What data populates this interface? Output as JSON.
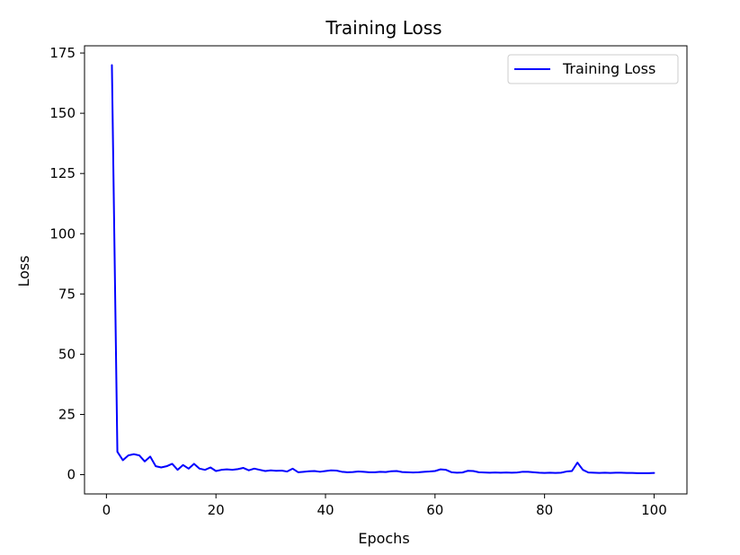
{
  "chart_data": {
    "type": "line",
    "title": "Training Loss",
    "xlabel": "Epochs",
    "ylabel": "Loss",
    "xlim": [
      -4,
      106
    ],
    "ylim": [
      -8,
      178
    ],
    "x_ticks": [
      0,
      20,
      40,
      60,
      80,
      100
    ],
    "y_ticks": [
      0,
      25,
      50,
      75,
      100,
      125,
      150,
      175
    ],
    "grid": false,
    "legend": {
      "position": "top-right",
      "entries": [
        "Training Loss"
      ]
    },
    "colors": {
      "series": "#0000ff",
      "axes": "#000000",
      "background": "#ffffff"
    },
    "series": [
      {
        "name": "Training Loss",
        "x": [
          1,
          2,
          3,
          4,
          5,
          6,
          7,
          8,
          9,
          10,
          11,
          12,
          13,
          14,
          15,
          16,
          17,
          18,
          19,
          20,
          21,
          22,
          23,
          24,
          25,
          26,
          27,
          28,
          29,
          30,
          31,
          32,
          33,
          34,
          35,
          36,
          37,
          38,
          39,
          40,
          41,
          42,
          43,
          44,
          45,
          46,
          47,
          48,
          49,
          50,
          51,
          52,
          53,
          54,
          55,
          56,
          57,
          58,
          59,
          60,
          61,
          62,
          63,
          64,
          65,
          66,
          67,
          68,
          69,
          70,
          71,
          72,
          73,
          74,
          75,
          76,
          77,
          78,
          79,
          80,
          81,
          82,
          83,
          84,
          85,
          86,
          87,
          88,
          89,
          90,
          91,
          92,
          93,
          94,
          95,
          96,
          97,
          98,
          99,
          100
        ],
        "values": [
          170,
          9.5,
          6,
          8,
          8.5,
          8,
          5.5,
          7.5,
          3.5,
          3,
          3.5,
          4.5,
          2,
          4,
          2.5,
          4.5,
          2.5,
          2,
          3,
          1.5,
          2,
          2.2,
          2,
          2.3,
          2.8,
          1.8,
          2.5,
          2,
          1.5,
          1.8,
          1.6,
          1.7,
          1.3,
          2.5,
          1,
          1.2,
          1.4,
          1.5,
          1.2,
          1.5,
          1.8,
          1.7,
          1.2,
          1,
          1.1,
          1.3,
          1.2,
          1,
          1,
          1.2,
          1.1,
          1.4,
          1.5,
          1.1,
          1,
          0.9,
          1,
          1.2,
          1.3,
          1.5,
          2.2,
          2,
          1,
          0.8,
          0.9,
          1.6,
          1.5,
          1,
          0.9,
          0.8,
          0.9,
          0.8,
          0.9,
          0.8,
          0.9,
          1.2,
          1.2,
          1,
          0.8,
          0.7,
          0.8,
          0.7,
          0.8,
          1.3,
          1.5,
          5,
          2,
          0.9,
          0.8,
          0.7,
          0.8,
          0.7,
          0.8,
          0.8,
          0.7,
          0.7,
          0.6,
          0.6,
          0.6,
          0.7
        ]
      }
    ]
  }
}
